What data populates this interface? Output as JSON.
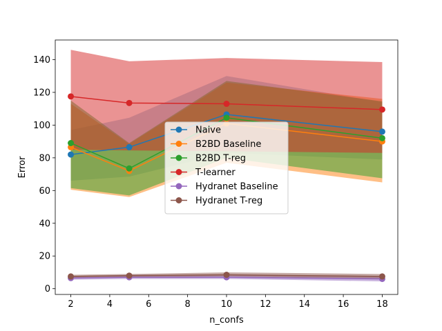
{
  "chart_data": {
    "type": "line",
    "title": "",
    "xlabel": "n_confs",
    "ylabel": "Error",
    "xlim": [
      1.2,
      18.8
    ],
    "ylim": [
      -3.5,
      152
    ],
    "xticks": [
      2,
      4,
      6,
      8,
      10,
      12,
      14,
      16,
      18
    ],
    "yticks": [
      0,
      20,
      40,
      60,
      80,
      100,
      120,
      140
    ],
    "grid": false,
    "legend_position": "center",
    "x": [
      2,
      5,
      10,
      18
    ],
    "series": [
      {
        "name": "Naive",
        "color": "#1f77b4",
        "values": [
          82,
          86.5,
          106.5,
          96
        ],
        "lower": [
          66,
          68.5,
          83,
          79
        ],
        "upper": [
          97,
          104.5,
          130,
          114
        ],
        "band_alpha": 0.3
      },
      {
        "name": "B2BD Baseline",
        "color": "#ff7f0e",
        "values": [
          86.5,
          72,
          101,
          90
        ],
        "lower": [
          60.5,
          56,
          77,
          65
        ],
        "upper": [
          113,
          88.5,
          126,
          116
        ],
        "band_alpha": 0.5
      },
      {
        "name": "B2BD T-reg",
        "color": "#2ca02c",
        "values": [
          89,
          73.5,
          104.5,
          92
        ],
        "lower": [
          61.5,
          57,
          80,
          67.5
        ],
        "upper": [
          115,
          89,
          127,
          114.5
        ],
        "band_alpha": 0.5
      },
      {
        "name": "T-learner",
        "color": "#d62728",
        "values": [
          117.5,
          113.5,
          113,
          109.5
        ],
        "lower": [
          85,
          84.5,
          84,
          83
        ],
        "upper": [
          146,
          139,
          141,
          138.5
        ],
        "band_alpha": 0.5
      },
      {
        "name": "Hydranet Baseline",
        "color": "#9467bd",
        "values": [
          6.5,
          7,
          7,
          6
        ],
        "lower": [
          5.5,
          6,
          6,
          4.5
        ],
        "upper": [
          7.5,
          8.5,
          8.5,
          7.5
        ],
        "band_alpha": 0.5
      },
      {
        "name": "Hydranet T-reg",
        "color": "#8c564b",
        "values": [
          7.5,
          8,
          8.5,
          7.5
        ],
        "lower": [
          6.5,
          7,
          7.5,
          6
        ],
        "upper": [
          8.5,
          9,
          10,
          9
        ],
        "band_alpha": 0.5
      }
    ]
  }
}
